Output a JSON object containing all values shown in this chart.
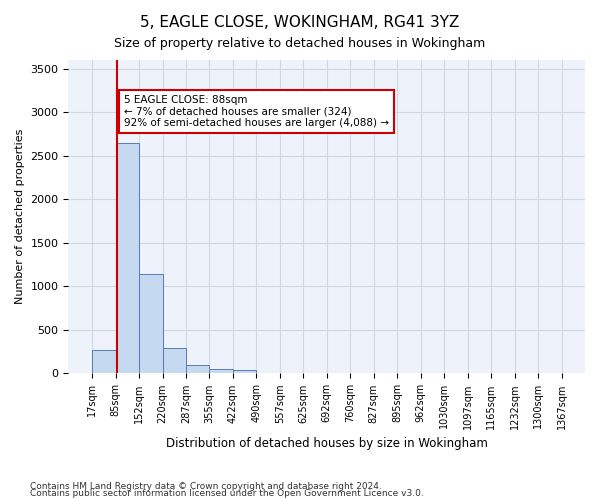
{
  "title_line1": "5, EAGLE CLOSE, WOKINGHAM, RG41 3YZ",
  "title_line2": "Size of property relative to detached houses in Wokingham",
  "xlabel": "Distribution of detached houses by size in Wokingham",
  "ylabel": "Number of detached properties",
  "bar_values": [
    270,
    2650,
    1140,
    290,
    95,
    55,
    35,
    0,
    0,
    0,
    0,
    0,
    0,
    0,
    0,
    0,
    0,
    0,
    0,
    0
  ],
  "bin_edges": [
    17,
    85,
    152,
    220,
    287,
    355,
    422,
    490,
    557,
    625,
    692,
    760,
    827,
    895,
    962,
    1030,
    1097,
    1165,
    1232,
    1300,
    1367
  ],
  "bin_labels": [
    "17sqm",
    "85sqm",
    "152sqm",
    "220sqm",
    "287sqm",
    "355sqm",
    "422sqm",
    "490sqm",
    "557sqm",
    "625sqm",
    "692sqm",
    "760sqm",
    "827sqm",
    "895sqm",
    "962sqm",
    "1030sqm",
    "1097sqm",
    "1165sqm",
    "1232sqm",
    "1300sqm",
    "1367sqm"
  ],
  "ylim": [
    0,
    3600
  ],
  "yticks": [
    0,
    500,
    1000,
    1500,
    2000,
    2500,
    3000,
    3500
  ],
  "bar_color": "#c5d9f1",
  "bar_edge_color": "#5a7ab5",
  "grid_color": "#d0d8e8",
  "background_color": "#eef2fa",
  "vline_x": 88,
  "vline_color": "#cc0000",
  "annotation_text": "5 EAGLE CLOSE: 88sqm\n← 7% of detached houses are smaller (324)\n92% of semi-detached houses are larger (4,088) →",
  "annotation_box_color": "#ffffff",
  "annotation_box_edge": "#cc0000",
  "footnote1": "Contains HM Land Registry data © Crown copyright and database right 2024.",
  "footnote2": "Contains public sector information licensed under the Open Government Licence v3.0."
}
